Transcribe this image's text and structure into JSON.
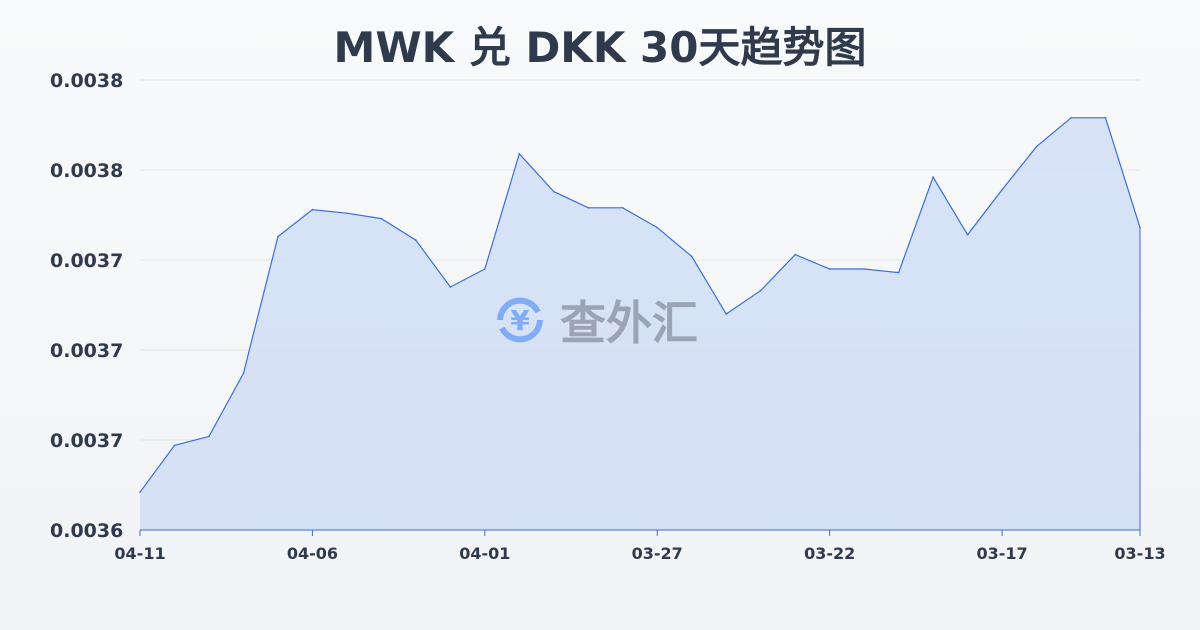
{
  "chart_data": {
    "type": "area",
    "title": "MWK 兑 DKK 30天趋势图",
    "xlabel": "",
    "ylabel": "",
    "ylim": [
      0.0036,
      0.00385
    ],
    "yticks": [
      0.0036,
      0.00365,
      0.0037,
      0.00375,
      0.0038,
      0.00385
    ],
    "ytick_labels": [
      "0.0036",
      "0.0037",
      "0.0037",
      "0.0037",
      "0.0038",
      "0.0038"
    ],
    "xtick_labels": [
      "04-11",
      "04-06",
      "04-01",
      "03-27",
      "03-22",
      "03-17",
      "03-13"
    ],
    "xtick_indices": [
      0,
      5,
      10,
      15,
      20,
      25,
      29
    ],
    "x": [
      "04-11",
      "04-10",
      "04-09",
      "04-08",
      "04-07",
      "04-06",
      "04-05",
      "04-04",
      "04-03",
      "04-02",
      "04-01",
      "03-31",
      "03-30",
      "03-29",
      "03-28",
      "03-27",
      "03-26",
      "03-25",
      "03-24",
      "03-23",
      "03-22",
      "03-21",
      "03-20",
      "03-19",
      "03-18",
      "03-17",
      "03-16",
      "03-15",
      "03-14",
      "03-13"
    ],
    "values": [
      0.003621,
      0.003647,
      0.003652,
      0.003687,
      0.003763,
      0.003778,
      0.003776,
      0.003773,
      0.003761,
      0.003735,
      0.003745,
      0.003809,
      0.003788,
      0.003779,
      0.003779,
      0.003768,
      0.003752,
      0.00372,
      0.003733,
      0.003753,
      0.003745,
      0.003745,
      0.003743,
      0.003796,
      0.003764,
      0.003789,
      0.003813,
      0.003829,
      0.003829,
      0.003768
    ],
    "grid": true,
    "line_color": "#3b6fd4",
    "fill_color": "#c9d8f5"
  },
  "watermark": {
    "text": "查外汇",
    "icon": "yen-exchange-icon"
  }
}
